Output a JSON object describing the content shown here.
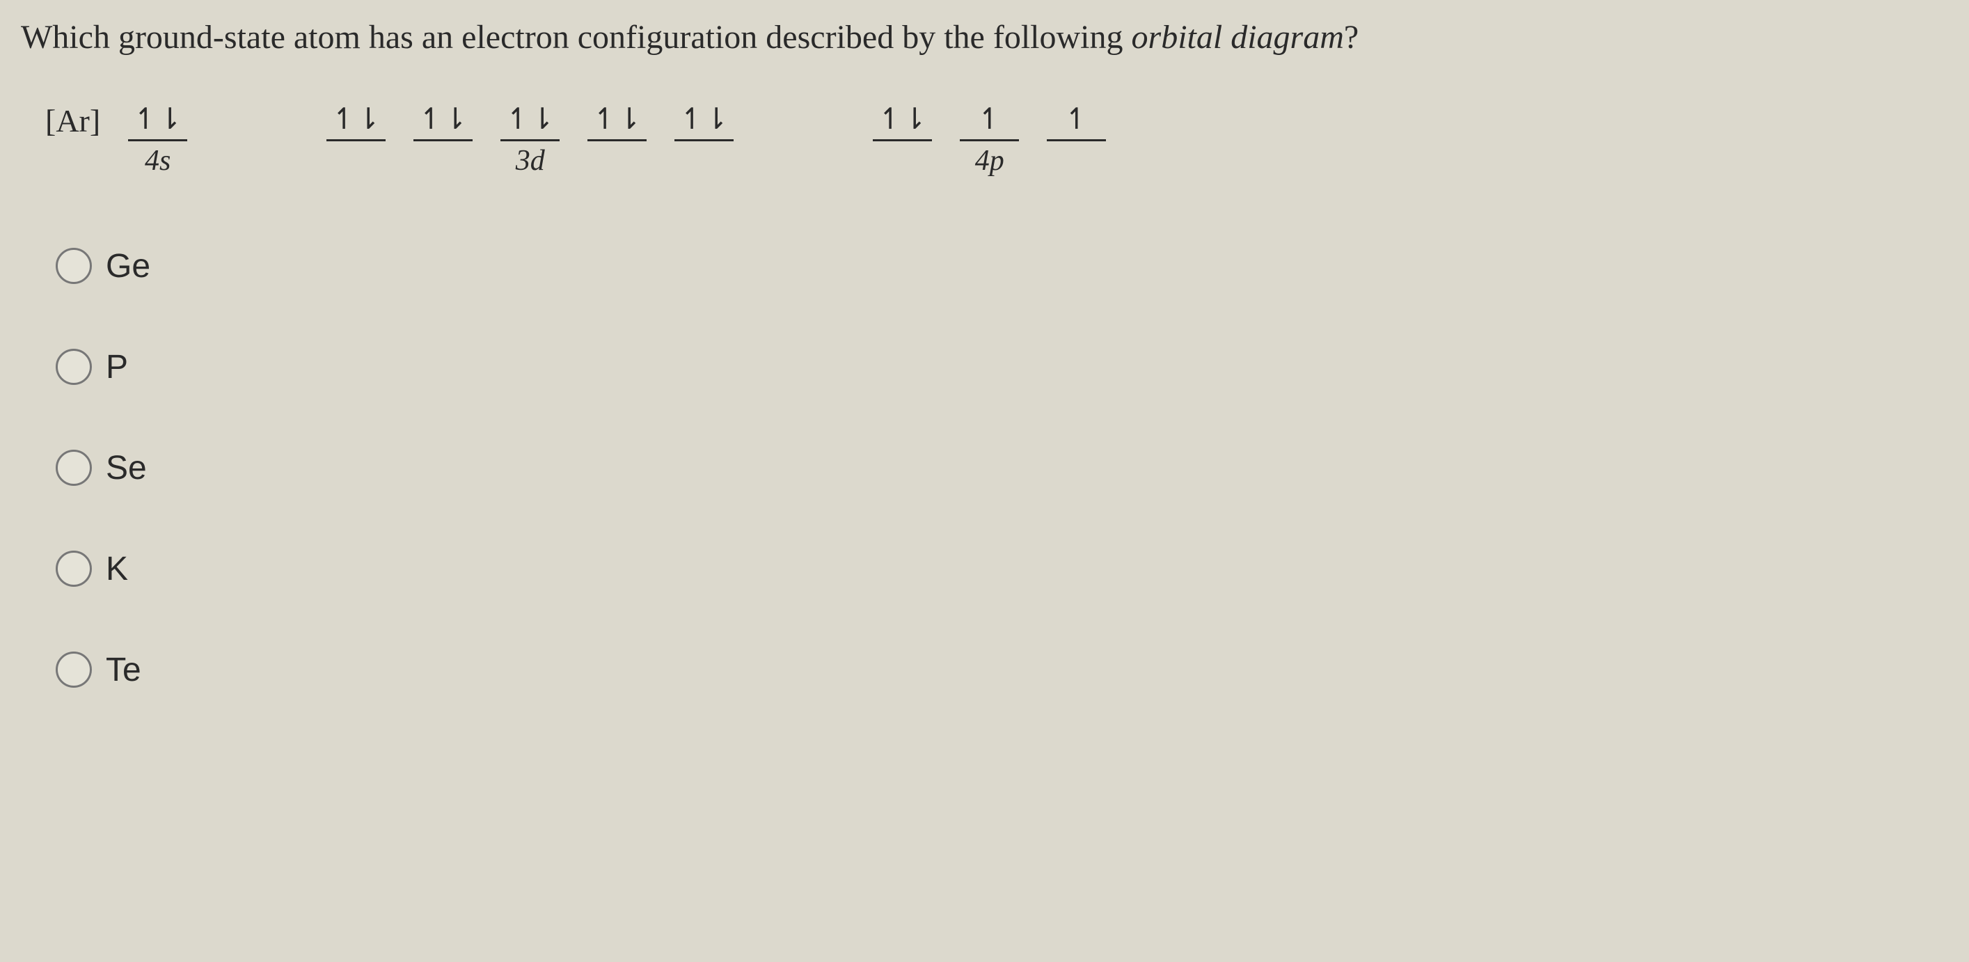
{
  "question": {
    "text_part1": "Which ground-state atom has an electron configuration described by the following ",
    "text_italic": "orbital diagram",
    "text_part2": "?"
  },
  "orbital_diagram": {
    "core_notation": "[Ar]",
    "sublevels": [
      {
        "label": "4s",
        "orbitals": [
          "↿⇂"
        ]
      },
      {
        "label": "3d",
        "orbitals": [
          "↿⇂",
          "↿⇂",
          "↿⇂",
          "↿⇂",
          "↿⇂"
        ]
      },
      {
        "label": "4p",
        "orbitals": [
          "↿⇂",
          "↿",
          "↿"
        ]
      }
    ]
  },
  "options": [
    {
      "label": "Ge"
    },
    {
      "label": "P"
    },
    {
      "label": "Se"
    },
    {
      "label": "K"
    },
    {
      "label": "Te"
    }
  ],
  "styling": {
    "background_color": "#dcd9cd",
    "text_color": "#2a2a2a",
    "radio_border_color": "#777777",
    "question_fontsize": 48,
    "orbital_fontsize": 42,
    "option_fontsize": 48
  }
}
